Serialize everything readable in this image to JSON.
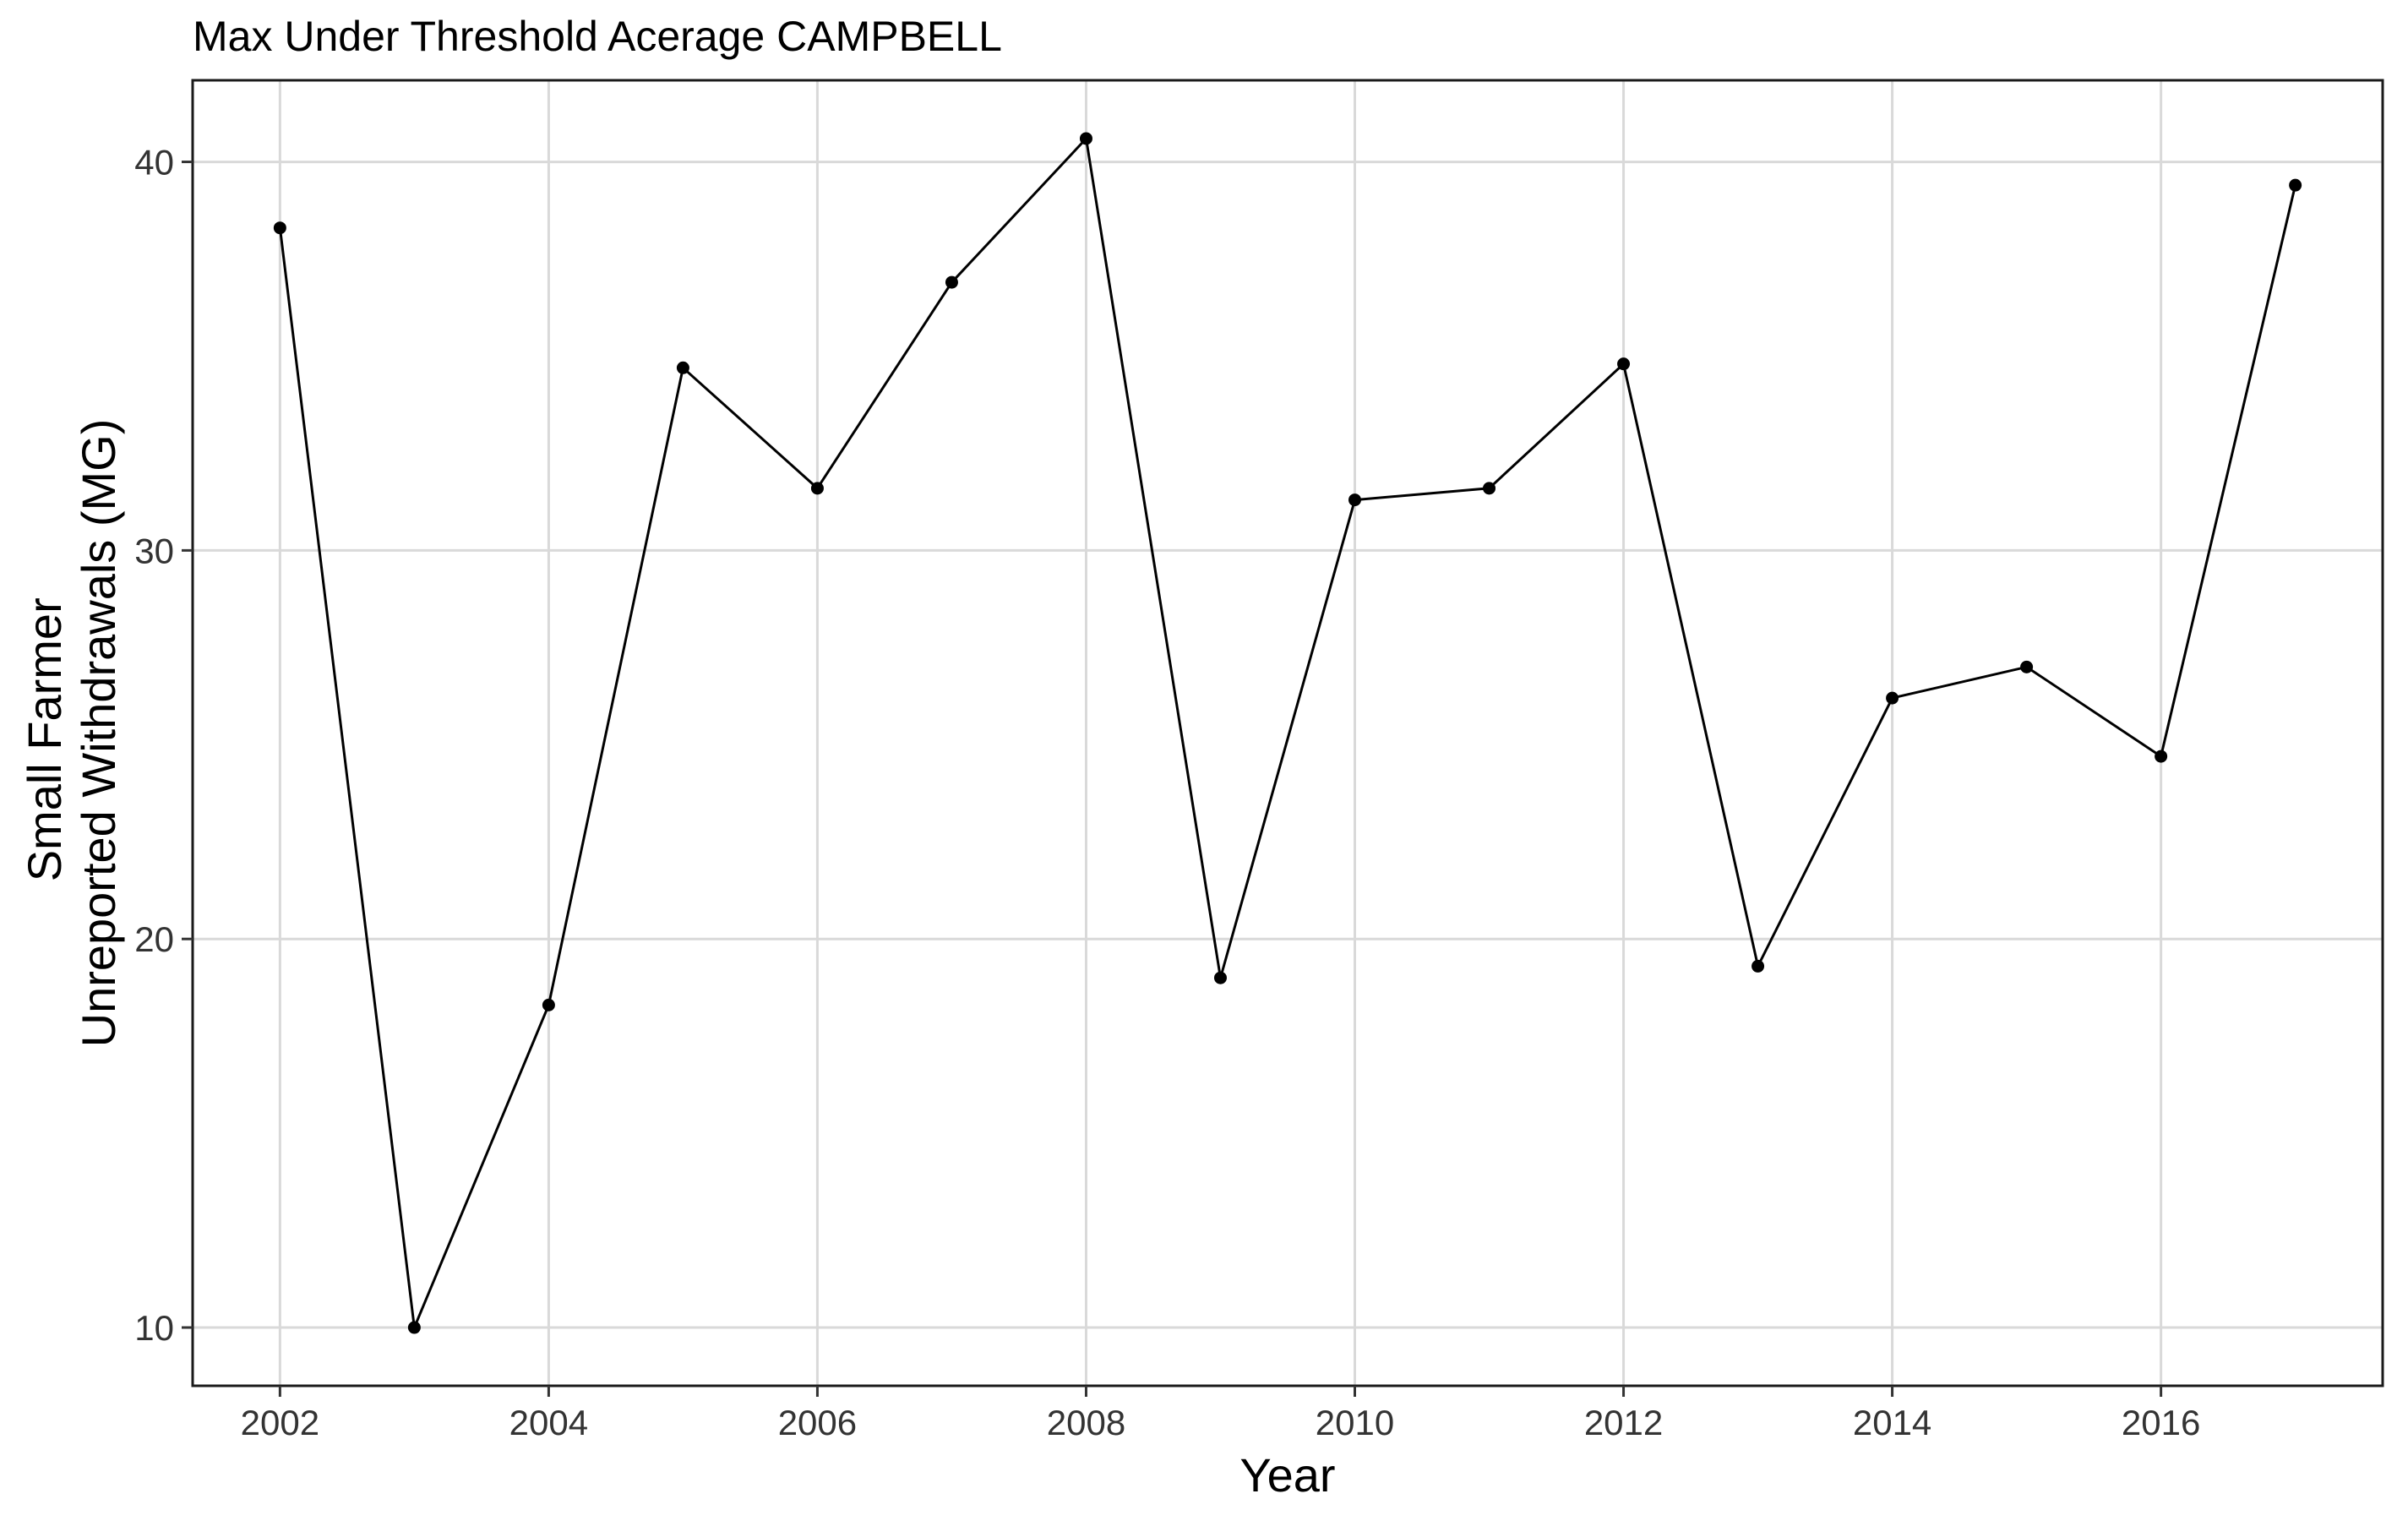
{
  "chart_data": {
    "type": "line",
    "title": "Max Under Threshold Acerage CAMPBELL",
    "xlabel": "Year",
    "ylabel": [
      "Small Farmer",
      "Unreported Withdrawals (MG)"
    ],
    "xlim": [
      2001.35,
      2017.65
    ],
    "ylim": [
      8.5,
      42.1
    ],
    "xticks": [
      2002,
      2004,
      2006,
      2008,
      2010,
      2012,
      2014,
      2016
    ],
    "xtick_labels": [
      "2002",
      "2004",
      "2006",
      "2008",
      "2010",
      "2012",
      "2014",
      "2016"
    ],
    "yticks": [
      10,
      20,
      30,
      40
    ],
    "ytick_labels": [
      "10",
      "20",
      "30",
      "40"
    ],
    "grid": true,
    "colors": {
      "line": "#000000",
      "grid": "#d9d9d9",
      "border": "#1a1a1a"
    },
    "series": [
      {
        "x": [
          2002,
          2003,
          2004,
          2005,
          2006,
          2007,
          2008,
          2009,
          2010,
          2011,
          2012,
          2013,
          2014,
          2015,
          2016,
          2017
        ],
        "values": [
          38.3,
          10.0,
          18.3,
          34.7,
          31.6,
          36.9,
          40.6,
          19.0,
          31.3,
          31.6,
          34.8,
          19.3,
          26.2,
          27.0,
          24.7,
          39.4
        ]
      }
    ]
  }
}
